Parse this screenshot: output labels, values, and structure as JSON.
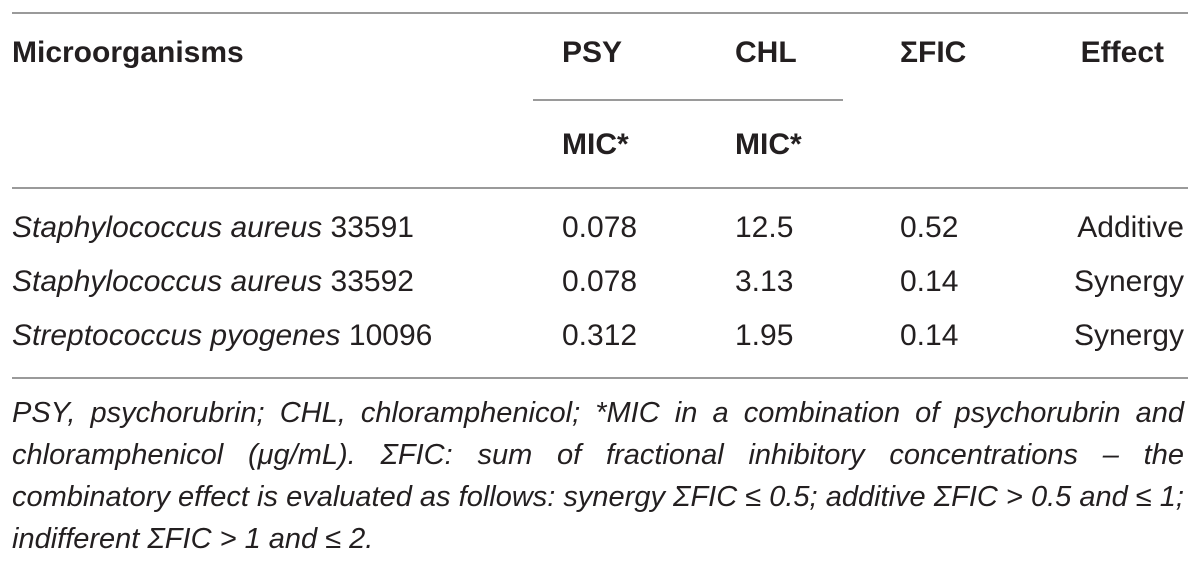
{
  "table": {
    "headers": {
      "organism": "Microorganisms",
      "psy": "PSY",
      "chl": "CHL",
      "sfic": "ΣFIC",
      "effect": "Effect",
      "psy_sub": "MIC*",
      "chl_sub": "MIC*"
    },
    "rows": [
      {
        "species": "Staphylococcus aureus",
        "strain": "33591",
        "psy": "0.078",
        "chl": "12.5",
        "sfic": "0.52",
        "effect": "Additive"
      },
      {
        "species": "Staphylococcus aureus",
        "strain": "33592",
        "psy": "0.078",
        "chl": "3.13",
        "sfic": "0.14",
        "effect": "Synergy"
      },
      {
        "species": "Streptococcus pyogenes",
        "strain": "10096",
        "psy": "0.312",
        "chl": "1.95",
        "sfic": "0.14",
        "effect": "Synergy"
      }
    ]
  },
  "footnote": "PSY, psychorubrin; CHL, chloramphenicol; *MIC in a combination of psychorubrin and chloramphenicol (μg/mL). ΣFIC: sum of fractional inhibitory concentrations – the combinatory effect is evaluated as follows: synergy ΣFIC ≤ 0.5; additive ΣFIC > 0.5 and ≤ 1; indifferent ΣFIC > 1 and ≤ 2."
}
